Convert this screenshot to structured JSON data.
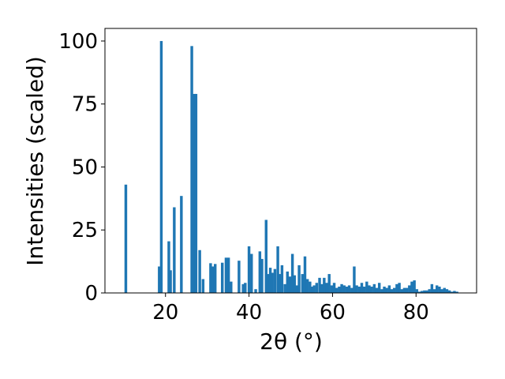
{
  "chart_data": {
    "type": "bar",
    "xlabel": "2θ (°)",
    "ylabel": "Intensities (scaled)",
    "xlim": [
      5.5,
      94.5
    ],
    "ylim": [
      0,
      105
    ],
    "xticks": [
      20,
      40,
      60,
      80
    ],
    "yticks": [
      0,
      25,
      50,
      75,
      100
    ],
    "grid": false,
    "bar_color": "#1f77b4",
    "bar_width": 0.65,
    "x": [
      10.5,
      18.5,
      19.0,
      20.8,
      21.2,
      22.1,
      23.8,
      26.3,
      26.9,
      27.3,
      28.2,
      29.0,
      30.8,
      31.3,
      31.9,
      33.6,
      34.5,
      35.1,
      35.7,
      37.6,
      38.6,
      39.1,
      40.0,
      40.6,
      41.6,
      42.6,
      43.1,
      44.1,
      44.6,
      45.1,
      45.6,
      46.2,
      46.9,
      47.4,
      47.9,
      48.6,
      49.2,
      49.8,
      50.4,
      50.9,
      51.4,
      52.0,
      52.8,
      53.4,
      54.0,
      54.6,
      55.2,
      55.6,
      56.2,
      56.9,
      57.5,
      58.0,
      58.6,
      59.2,
      59.8,
      60.4,
      61.0,
      61.6,
      62.2,
      62.8,
      63.4,
      64.0,
      64.6,
      65.2,
      65.8,
      66.4,
      67.0,
      67.6,
      68.2,
      68.8,
      69.4,
      70.0,
      70.6,
      71.2,
      71.8,
      72.4,
      73.0,
      73.6,
      74.2,
      74.8,
      75.4,
      76.0,
      76.6,
      77.2,
      77.8,
      78.4,
      79.0,
      79.6,
      80.2,
      80.8,
      81.4,
      82.0,
      82.6,
      83.2,
      83.8,
      84.4,
      85.0,
      85.6,
      86.2,
      86.8,
      87.4,
      88.0,
      88.6,
      89.2,
      89.8
    ],
    "values": [
      43.0,
      10.5,
      100.0,
      20.5,
      9.0,
      34.0,
      38.5,
      98.0,
      79.0,
      79.0,
      17.0,
      5.5,
      11.8,
      10.5,
      11.5,
      12.0,
      14.0,
      14.0,
      4.5,
      12.8,
      3.5,
      4.0,
      18.5,
      15.5,
      1.5,
      16.5,
      13.5,
      29.0,
      7.5,
      10.0,
      8.0,
      9.5,
      18.5,
      7.5,
      11.0,
      3.5,
      8.5,
      6.5,
      15.5,
      7.0,
      3.0,
      11.0,
      7.5,
      14.5,
      5.5,
      4.5,
      2.5,
      3.0,
      4.0,
      6.0,
      3.5,
      6.0,
      4.0,
      7.5,
      3.0,
      4.0,
      2.0,
      2.5,
      3.5,
      3.0,
      2.5,
      3.0,
      2.0,
      10.5,
      3.0,
      2.5,
      4.0,
      2.5,
      4.5,
      3.0,
      2.5,
      3.5,
      2.0,
      4.0,
      1.5,
      2.5,
      2.0,
      3.0,
      1.5,
      2.0,
      3.5,
      4.0,
      1.5,
      2.0,
      2.0,
      3.0,
      4.5,
      5.0,
      1.5,
      0.5,
      0.8,
      1.0,
      1.0,
      1.5,
      3.5,
      1.5,
      3.0,
      2.5,
      1.5,
      2.0,
      1.5,
      1.0,
      0.5,
      0.8,
      0.5
    ]
  }
}
